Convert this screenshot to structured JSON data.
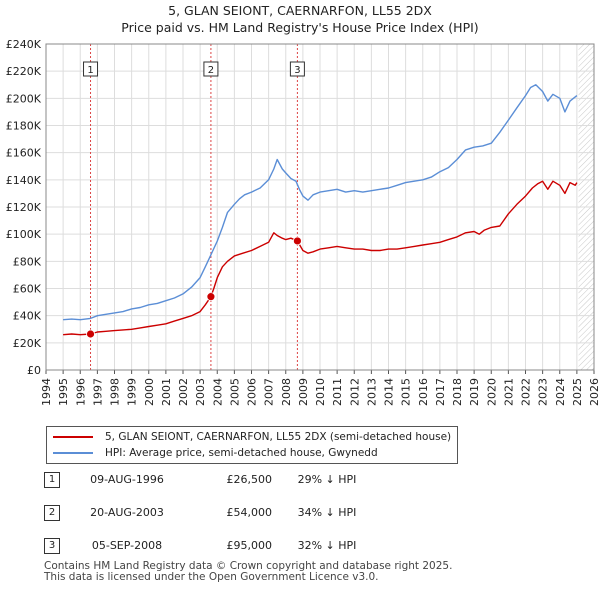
{
  "header": {
    "title": "5, GLAN SEIONT, CAERNARFON, LL55 2DX",
    "subtitle": "Price paid vs. HM Land Registry's House Price Index (HPI)"
  },
  "chart_data": {
    "type": "line",
    "title": "5, GLAN SEIONT, CAERNARFON, LL55 2DX",
    "subtitle": "Price paid vs. HM Land Registry's House Price Index (HPI)",
    "xlabel": "",
    "ylabel": "",
    "xlim": [
      1994,
      2026
    ],
    "ylim": [
      0,
      240000
    ],
    "x_ticks": [
      1994,
      1995,
      1996,
      1997,
      1998,
      1999,
      2000,
      2001,
      2002,
      2003,
      2004,
      2005,
      2006,
      2007,
      2008,
      2009,
      2010,
      2011,
      2012,
      2013,
      2014,
      2015,
      2016,
      2017,
      2018,
      2019,
      2020,
      2021,
      2022,
      2023,
      2024,
      2025,
      2026
    ],
    "y_ticks": [
      {
        "value": 0,
        "label": "£0"
      },
      {
        "value": 20000,
        "label": "£20K"
      },
      {
        "value": 40000,
        "label": "£40K"
      },
      {
        "value": 60000,
        "label": "£60K"
      },
      {
        "value": 80000,
        "label": "£80K"
      },
      {
        "value": 100000,
        "label": "£100K"
      },
      {
        "value": 120000,
        "label": "£120K"
      },
      {
        "value": 140000,
        "label": "£140K"
      },
      {
        "value": 160000,
        "label": "£160K"
      },
      {
        "value": 180000,
        "label": "£180K"
      },
      {
        "value": 200000,
        "label": "£200K"
      },
      {
        "value": 220000,
        "label": "£220K"
      },
      {
        "value": 240000,
        "label": "£240K"
      }
    ],
    "grid": true,
    "data_region_end": 2025.1,
    "series": [
      {
        "name": "5, GLAN SEIONT, CAERNARFON, LL55 2DX (semi-detached house)",
        "color": "#cc0000",
        "x": [
          1995.0,
          1995.5,
          1996.0,
          1996.6,
          1997.0,
          1997.5,
          1998.0,
          1998.5,
          1999.0,
          1999.5,
          2000.0,
          2000.5,
          2001.0,
          2001.5,
          2002.0,
          2002.5,
          2003.0,
          2003.3,
          2003.63,
          2003.8,
          2004.0,
          2004.3,
          2004.6,
          2005.0,
          2005.5,
          2006.0,
          2006.5,
          2007.0,
          2007.3,
          2007.5,
          2007.8,
          2008.0,
          2008.3,
          2008.68,
          2009.0,
          2009.3,
          2009.6,
          2010.0,
          2010.5,
          2011.0,
          2011.5,
          2012.0,
          2012.5,
          2013.0,
          2013.5,
          2014.0,
          2014.5,
          2015.0,
          2015.5,
          2016.0,
          2016.5,
          2017.0,
          2017.5,
          2018.0,
          2018.5,
          2019.0,
          2019.3,
          2019.6,
          2020.0,
          2020.5,
          2021.0,
          2021.5,
          2022.0,
          2022.4,
          2022.7,
          2023.0,
          2023.3,
          2023.6,
          2024.0,
          2024.3,
          2024.6,
          2024.9,
          2025.0
        ],
        "values": [
          26000,
          26500,
          26000,
          26500,
          28000,
          28500,
          29000,
          29500,
          30000,
          31000,
          32000,
          33000,
          34000,
          36000,
          38000,
          40000,
          43000,
          48000,
          54000,
          60000,
          68000,
          76000,
          80000,
          84000,
          86000,
          88000,
          91000,
          94000,
          101000,
          99000,
          97000,
          96000,
          97000,
          95000,
          88000,
          86000,
          87000,
          89000,
          90000,
          91000,
          90000,
          89000,
          89000,
          88000,
          88000,
          89000,
          89000,
          90000,
          91000,
          92000,
          93000,
          94000,
          96000,
          98000,
          101000,
          102000,
          100000,
          103000,
          105000,
          106000,
          115000,
          122000,
          128000,
          134000,
          137000,
          139000,
          133000,
          139000,
          136000,
          130000,
          138000,
          136000,
          138000
        ]
      },
      {
        "name": "HPI: Average price, semi-detached house, Gwynedd",
        "color": "#5b8ed6",
        "x": [
          1995.0,
          1995.5,
          1996.0,
          1996.6,
          1997.0,
          1997.5,
          1998.0,
          1998.5,
          1999.0,
          1999.5,
          2000.0,
          2000.5,
          2001.0,
          2001.5,
          2002.0,
          2002.5,
          2003.0,
          2003.3,
          2003.6,
          2004.0,
          2004.3,
          2004.6,
          2005.0,
          2005.3,
          2005.6,
          2006.0,
          2006.5,
          2007.0,
          2007.3,
          2007.5,
          2007.8,
          2008.0,
          2008.3,
          2008.6,
          2008.8,
          2009.0,
          2009.3,
          2009.6,
          2010.0,
          2010.5,
          2011.0,
          2011.5,
          2012.0,
          2012.5,
          2013.0,
          2013.5,
          2014.0,
          2014.5,
          2015.0,
          2015.5,
          2016.0,
          2016.5,
          2017.0,
          2017.5,
          2018.0,
          2018.5,
          2019.0,
          2019.5,
          2020.0,
          2020.5,
          2021.0,
          2021.5,
          2022.0,
          2022.3,
          2022.6,
          2023.0,
          2023.3,
          2023.6,
          2024.0,
          2024.3,
          2024.6,
          2025.0
        ],
        "values": [
          37000,
          37500,
          37000,
          38000,
          40000,
          41000,
          42000,
          43000,
          45000,
          46000,
          48000,
          49000,
          51000,
          53000,
          56000,
          61000,
          68000,
          76000,
          84000,
          95000,
          105000,
          116000,
          122000,
          126000,
          129000,
          131000,
          134000,
          140000,
          148000,
          155000,
          148000,
          145000,
          141000,
          139000,
          133000,
          128000,
          125000,
          129000,
          131000,
          132000,
          133000,
          131000,
          132000,
          131000,
          132000,
          133000,
          134000,
          136000,
          138000,
          139000,
          140000,
          142000,
          146000,
          149000,
          155000,
          162000,
          164000,
          165000,
          167000,
          175000,
          184000,
          193000,
          202000,
          208000,
          210000,
          205000,
          198000,
          203000,
          200000,
          190000,
          198000,
          202000
        ]
      }
    ],
    "sales": [
      {
        "number": "1",
        "x": 1996.6,
        "value": 26500
      },
      {
        "number": "2",
        "x": 2003.63,
        "value": 54000
      },
      {
        "number": "3",
        "x": 2008.68,
        "value": 95000
      }
    ],
    "legend_position": "bottom"
  },
  "legend": {
    "items": [
      {
        "label": "5, GLAN SEIONT, CAERNARFON, LL55 2DX (semi-detached house)",
        "color": "#cc0000"
      },
      {
        "label": "HPI: Average price, semi-detached house, Gwynedd",
        "color": "#5b8ed6"
      }
    ]
  },
  "sales_table": [
    {
      "number": "1",
      "date": "09-AUG-1996",
      "price": "£26,500",
      "hpi": "29% ↓ HPI"
    },
    {
      "number": "2",
      "date": "20-AUG-2003",
      "price": "£54,000",
      "hpi": "34% ↓ HPI"
    },
    {
      "number": "3",
      "date": "05-SEP-2008",
      "price": "£95,000",
      "hpi": "32% ↓ HPI"
    }
  ],
  "footer": {
    "line1": "Contains HM Land Registry data © Crown copyright and database right 2025.",
    "line2": "This data is licensed under the Open Government Licence v3.0."
  }
}
